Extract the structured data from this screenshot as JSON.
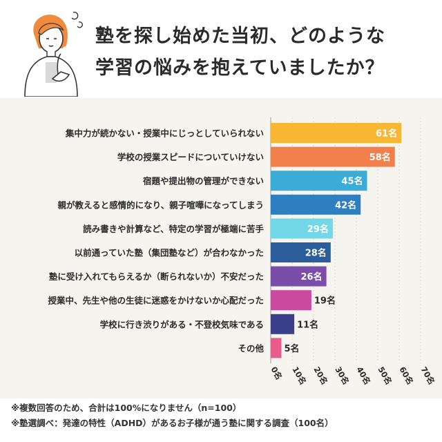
{
  "header": {
    "title_line1": "塾を探し始めた当初、どのような",
    "title_line2": "学習の悩みを抱えていましたか？"
  },
  "chart_data": {
    "type": "bar",
    "orientation": "horizontal",
    "categories": [
      "集中力が続かない・授業中にじっとしていられない",
      "学校の授業スピードについていけない",
      "宿題や提出物の管理ができない",
      "親が教えると感情的になり、親子喧嘩になってしまう",
      "読み書きや計算など、特定の学習が極端に苦手",
      "以前通っていた塾（集団塾など）が合わなかった",
      "塾に受け入れてもらえるか（断られないか）不安だった",
      "授業中、先生や他の生徒に迷惑をかけないか心配だった",
      "学校に行き渋りがある・不登校気味である",
      "その他"
    ],
    "values": [
      61,
      58,
      45,
      42,
      29,
      28,
      26,
      19,
      11,
      5
    ],
    "value_labels": [
      "61名",
      "58名",
      "45名",
      "42名",
      "29名",
      "28名",
      "26名",
      "19名",
      "11名",
      "5名"
    ],
    "colors": [
      "#f7b733",
      "#f2804d",
      "#3aacd6",
      "#2e7fc0",
      "#72d8e8",
      "#2a5d9a",
      "#7a4ea8",
      "#c94a9e",
      "#3b3f8a",
      "#e85b8a"
    ],
    "xlim": [
      0,
      70
    ],
    "x_ticks": [
      "0名",
      "10名",
      "20名",
      "30名",
      "40名",
      "50名",
      "60名",
      "70名"
    ],
    "grid": true
  },
  "notes": [
    "※複数回答のため、合計は100%になりません（n=100）",
    "※塾選調べ：発達の特性（ADHD）があるお子様が通う塾に関する調査（100名）"
  ]
}
